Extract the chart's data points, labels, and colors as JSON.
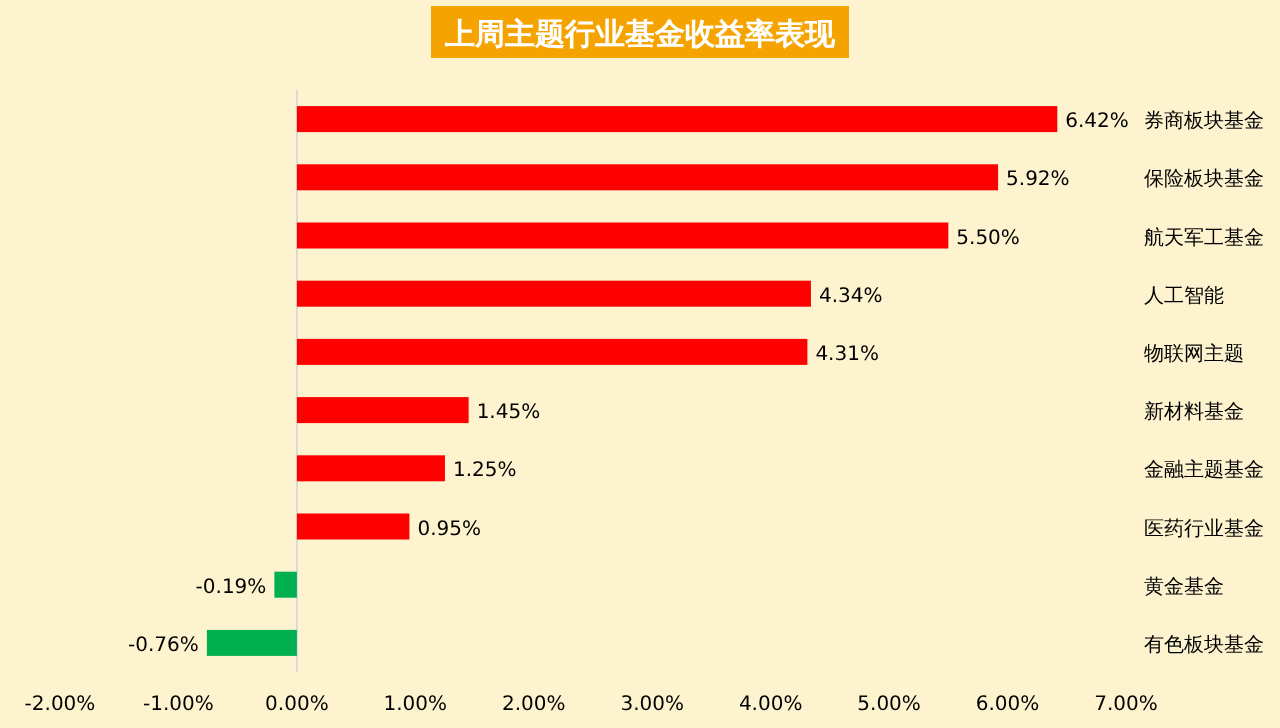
{
  "chart_data": {
    "type": "bar",
    "orientation": "horizontal",
    "title": "上周主题行业基金收益率表现",
    "categories": [
      "券商板块基金",
      "保险板块基金",
      "航天军工基金",
      "人工智能",
      "物联网主题",
      "新材料基金",
      "金融主题基金",
      "医药行业基金",
      "黄金基金",
      "有色板块基金"
    ],
    "values": [
      6.42,
      5.92,
      5.5,
      4.34,
      4.31,
      1.45,
      1.25,
      0.95,
      -0.19,
      -0.76
    ],
    "colors": [
      "#ff0000",
      "#ff0000",
      "#ff0000",
      "#ff0000",
      "#ff0000",
      "#ff0000",
      "#ff0000",
      "#ff0000",
      "#00b050",
      "#00b050"
    ],
    "value_labels": [
      "6.42%",
      "5.92%",
      "5.50%",
      "4.34%",
      "4.31%",
      "1.45%",
      "1.25%",
      "0.95%",
      "-0.19%",
      "-0.76%"
    ],
    "xlim": [
      -2,
      7
    ],
    "xticks": [
      {
        "value": -2,
        "label": "-2.00%"
      },
      {
        "value": -1,
        "label": "-1.00%"
      },
      {
        "value": 0,
        "label": "0.00%"
      },
      {
        "value": 1,
        "label": "1.00%"
      },
      {
        "value": 2,
        "label": "2.00%"
      },
      {
        "value": 3,
        "label": "3.00%"
      },
      {
        "value": 4,
        "label": "4.00%"
      },
      {
        "value": 5,
        "label": "5.00%"
      },
      {
        "value": 6,
        "label": "6.00%"
      },
      {
        "value": 7,
        "label": "7.00%"
      }
    ],
    "tick_labels": "x"
  }
}
